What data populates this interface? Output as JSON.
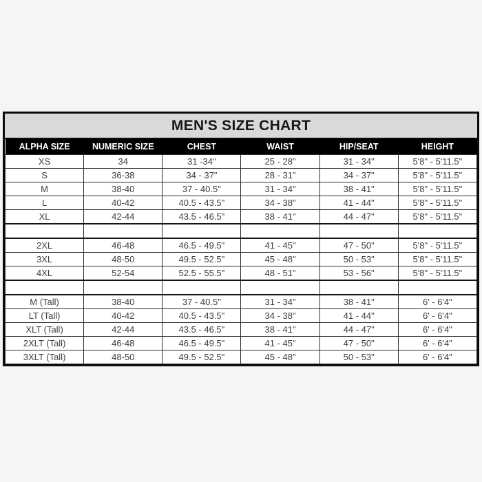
{
  "colors": {
    "page_background": "#f5f5f6",
    "title_background": "#d9d9d9",
    "header_background": "#000000",
    "header_text": "#ffffff",
    "body_text": "#3d3d3d",
    "border": "#1a1a1a"
  },
  "chart_data": {
    "type": "table",
    "title": "MEN'S SIZE CHART",
    "columns": [
      "ALPHA SIZE",
      "NUMERIC SIZE",
      "CHEST",
      "WAIST",
      "HIP/SEAT",
      "HEIGHT"
    ],
    "rows": [
      [
        "XS",
        "34",
        "31 -34\"",
        "25 - 28\"",
        "31 - 34\"",
        "5'8\" - 5'11.5\""
      ],
      [
        "S",
        "36-38",
        "34 - 37\"",
        "28 - 31\"",
        "34 - 37\"",
        "5'8\" - 5'11.5\""
      ],
      [
        "M",
        "38-40",
        "37 - 40.5\"",
        "31 - 34\"",
        "38 - 41\"",
        "5'8\" - 5'11.5\""
      ],
      [
        "L",
        "40-42",
        "40.5 - 43.5\"",
        "34 - 38\"",
        "41 - 44\"",
        "5'8\" - 5'11.5\""
      ],
      [
        "XL",
        "42-44",
        "43.5 - 46.5\"",
        "38 - 41\"",
        "44 - 47\"",
        "5'8\" - 5'11.5\""
      ],
      [
        "",
        "",
        "",
        "",
        "",
        ""
      ],
      [
        "2XL",
        "46-48",
        "46.5 - 49.5\"",
        "41 - 45\"",
        "47 - 50\"",
        "5'8\" - 5'11.5\""
      ],
      [
        "3XL",
        "48-50",
        "49.5 - 52.5\"",
        "45 - 48\"",
        "50 - 53\"",
        "5'8\" - 5'11.5\""
      ],
      [
        "4XL",
        "52-54",
        "52.5 - 55.5\"",
        "48 - 51\"",
        "53 - 56\"",
        "5'8\" - 5'11.5\""
      ],
      [
        "",
        "",
        "",
        "",
        "",
        ""
      ],
      [
        "M (Tall)",
        "38-40",
        "37 - 40.5\"",
        "31 - 34\"",
        "38 - 41\"",
        "6' - 6'4\""
      ],
      [
        "LT (Tall)",
        "40-42",
        "40.5 - 43.5\"",
        "34 - 38\"",
        "41 - 44\"",
        "6' - 6'4\""
      ],
      [
        "XLT (Tall)",
        "42-44",
        "43.5 - 46.5\"",
        "38 - 41\"",
        "44 - 47\"",
        "6' - 6'4\""
      ],
      [
        "2XLT (Tall)",
        "46-48",
        "46.5 - 49.5\"",
        "41 - 45\"",
        "47 - 50\"",
        "6' - 6'4\""
      ],
      [
        "3XLT (Tall)",
        "48-50",
        "49.5 - 52.5\"",
        "45 - 48\"",
        "50 - 53\"",
        "6' - 6'4\""
      ]
    ]
  }
}
